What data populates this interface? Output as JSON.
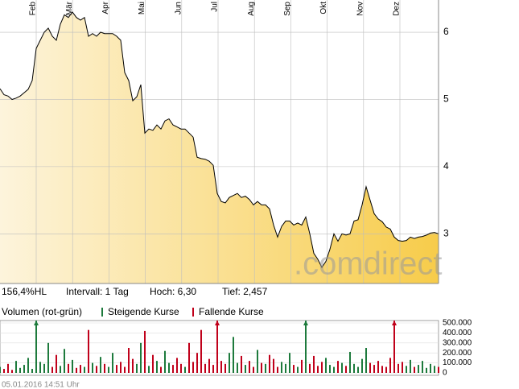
{
  "chart_data": {
    "type": "area",
    "months": [
      "Feb",
      "Mär",
      "Apr",
      "Mai",
      "Jun",
      "Jul",
      "Aug",
      "Sep",
      "Okt",
      "Nov",
      "Dez"
    ],
    "values": [
      5.16,
      5.07,
      5.05,
      5.0,
      5.02,
      5.05,
      5.1,
      5.15,
      5.28,
      5.76,
      5.88,
      6.0,
      6.06,
      5.94,
      5.88,
      6.12,
      6.26,
      6.22,
      6.3,
      6.22,
      6.18,
      6.22,
      5.94,
      5.98,
      5.94,
      6.0,
      5.98,
      5.98,
      5.98,
      5.94,
      5.88,
      5.4,
      5.28,
      4.98,
      5.04,
      5.22,
      4.5,
      4.56,
      4.54,
      4.62,
      4.56,
      4.68,
      4.71,
      4.62,
      4.59,
      4.56,
      4.56,
      4.5,
      4.44,
      4.14,
      4.12,
      4.11,
      4.08,
      4.02,
      3.6,
      3.48,
      3.46,
      3.54,
      3.57,
      3.6,
      3.54,
      3.56,
      3.51,
      3.43,
      3.48,
      3.43,
      3.43,
      3.37,
      3.13,
      2.95,
      3.11,
      3.19,
      3.19,
      3.13,
      3.16,
      3.13,
      3.25,
      3.0,
      2.71,
      2.62,
      2.5,
      2.59,
      2.77,
      3.0,
      2.89,
      3.0,
      2.98,
      3.0,
      3.19,
      3.21,
      3.43,
      3.7,
      3.5,
      3.3,
      3.22,
      3.18,
      3.1,
      3.07,
      2.95,
      2.9,
      2.89,
      2.9,
      2.95,
      2.93,
      2.95,
      2.96,
      2.98,
      3.01,
      3.02,
      3.0
    ],
    "ylim": [
      2.26,
      6.48
    ],
    "yticks": [
      3,
      4,
      5,
      6
    ],
    "grid": true,
    "line_color": "#000000",
    "fill_colors": [
      "#fdf4dc",
      "#f7cc4a"
    ],
    "watermark": ".comdirect",
    "info": [
      "156,4%HL",
      "Intervall: 1 Tag",
      "Hoch: 6,30",
      "Tief: 2,457"
    ],
    "volume_title": "Volumen (rot-grün)",
    "volume_series": [
      {
        "name": "Steigende Kurse",
        "color": "#1d7a3c"
      },
      {
        "name": "Fallende Kurse",
        "color": "#c0001a"
      }
    ],
    "volume": [
      60000,
      40000,
      90000,
      30000,
      120000,
      50000,
      80000,
      150000,
      40000,
      700000,
      110000,
      90000,
      300000,
      60000,
      180000,
      70000,
      240000,
      90000,
      130000,
      50000,
      80000,
      60000,
      430000,
      100000,
      70000,
      160000,
      90000,
      60000,
      200000,
      80000,
      110000,
      60000,
      250000,
      140000,
      90000,
      300000,
      420000,
      70000,
      180000,
      120000,
      60000,
      220000,
      100000,
      80000,
      150000,
      90000,
      60000,
      300000,
      110000,
      200000,
      430000,
      90000,
      140000,
      80000,
      650000,
      120000,
      90000,
      200000,
      360000,
      100000,
      170000,
      80000,
      120000,
      60000,
      230000,
      100000,
      90000,
      180000,
      140000,
      60000,
      110000,
      90000,
      200000,
      80000,
      60000,
      130000,
      600000,
      90000,
      170000,
      70000,
      110000,
      150000,
      80000,
      60000,
      120000,
      100000,
      70000,
      210000,
      90000,
      60000,
      140000,
      250000,
      100000,
      80000,
      120000,
      70000,
      60000,
      150000,
      550000,
      90000,
      110000,
      70000,
      130000,
      60000,
      80000,
      120000,
      50000,
      90000,
      70000,
      60000
    ],
    "vlim": [
      0,
      500000
    ],
    "vticks": [
      {
        "value": 500000,
        "label": "500.000"
      },
      {
        "value": 400000,
        "label": "400.000"
      },
      {
        "value": 300000,
        "label": "300.000"
      },
      {
        "value": 200000,
        "label": "200.000"
      },
      {
        "value": 100000,
        "label": "100.000"
      },
      0
    ],
    "timestamp": "05.01.2016 14:51 Uhr"
  }
}
